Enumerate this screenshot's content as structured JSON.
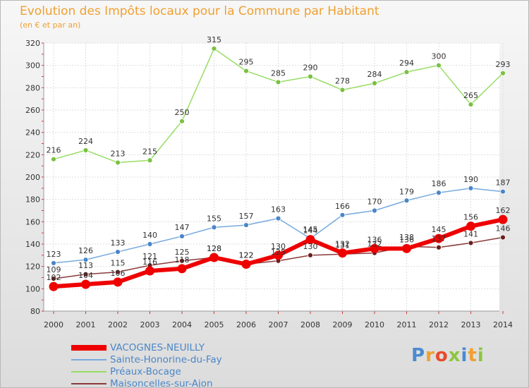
{
  "header": {
    "title": "Evolution des Impôts locaux pour la Commune par Habitant",
    "subtitle": "(en € et par an)"
  },
  "brand": {
    "text": "Proxiti",
    "colors": [
      "#4a8ad0",
      "#f0a030",
      "#e84b2a",
      "#8cc63f",
      "#4a8ad0",
      "#f0a030",
      "#8cc63f"
    ]
  },
  "chart_data": {
    "type": "line",
    "x": [
      2000,
      2001,
      2002,
      2003,
      2004,
      2005,
      2006,
      2007,
      2008,
      2009,
      2010,
      2011,
      2012,
      2013,
      2014
    ],
    "ylim": [
      80,
      320
    ],
    "yticks": [
      80,
      100,
      120,
      140,
      160,
      180,
      200,
      220,
      240,
      260,
      280,
      300,
      320
    ],
    "grid": true,
    "legend_position": "bottom-left",
    "series": [
      {
        "name": "Préaux-Bocage",
        "color": "#99dd66",
        "marker": "#7ac143",
        "values": [
          216,
          224,
          213,
          215,
          250,
          315,
          295,
          285,
          290,
          278,
          284,
          294,
          300,
          265,
          293
        ],
        "labels": [
          "216",
          "224",
          "213",
          "215",
          "250",
          "315",
          "295",
          "285",
          "290",
          "278",
          "284",
          "294",
          "300",
          "265",
          "293"
        ]
      },
      {
        "name": "Sainte-Honorine-du-Fay",
        "color": "#77aadd",
        "marker": "#4a86c8",
        "values": [
          123,
          126,
          133,
          140,
          147,
          155,
          157,
          163,
          145,
          166,
          170,
          179,
          186,
          190,
          187
        ],
        "labels": [
          "123",
          "126",
          "133",
          "140",
          "147",
          "155",
          "157",
          "163",
          "145",
          "166",
          "170",
          "179",
          "186",
          "190",
          "187"
        ]
      },
      {
        "name": "Maisoncelles-sur-Ajon",
        "color": "#8b3a3a",
        "marker": "#6b1f1f",
        "values": [
          109,
          113,
          115,
          121,
          125,
          128,
          122,
          125,
          130,
          131,
          132,
          138,
          137,
          141,
          146
        ],
        "labels": [
          "109",
          "113",
          "115",
          "121",
          "125",
          "128",
          "122",
          "125",
          "130",
          "131",
          "132",
          "138",
          "137",
          "141",
          "146"
        ]
      },
      {
        "name": "VACOGNES-NEUILLY",
        "color": "#ee0000",
        "marker": "#ee0000",
        "values": [
          102,
          104,
          106,
          116,
          118,
          128,
          122,
          130,
          144,
          132,
          136,
          136,
          145,
          156,
          162
        ],
        "labels": [
          "102",
          "104",
          "106",
          "116",
          "118",
          "128",
          "122",
          "130",
          "144",
          "132",
          "136",
          "136",
          "145",
          "156",
          "162"
        ]
      }
    ]
  },
  "legend": [
    {
      "name": "VACOGNES-NEUILLY",
      "color": "#ee0000",
      "thickness": 8
    },
    {
      "name": "Sainte-Honorine-du-Fay",
      "color": "#77aadd",
      "thickness": 2
    },
    {
      "name": "Préaux-Bocage",
      "color": "#99dd66",
      "thickness": 2
    },
    {
      "name": "Maisoncelles-sur-Ajon",
      "color": "#8b3a3a",
      "thickness": 2
    }
  ]
}
